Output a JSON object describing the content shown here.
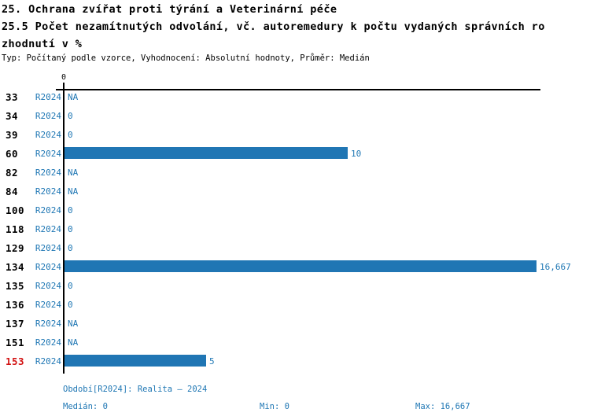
{
  "header": {
    "title_lines": [
      "25. Ochrana zvířat proti týrání a Veterinární péče",
      "25.5 Počet nezamítnutých odvolání, vč. autoremedury k počtu vydaných správních ro",
      "zhodnutí v %"
    ],
    "subtitle": "Typ: Počítaný podle vzorce, Vyhodnocení: Absolutní hodnoty, Průměr: Medián"
  },
  "colors": {
    "bar_blue": "#2076b4",
    "text_blue": "#1f77b4",
    "highlight_red": "#d21111",
    "axis_black": "#000000"
  },
  "chart_data": {
    "type": "bar",
    "orientation": "horizontal",
    "series_label": "R2024",
    "axis_top_tick_label": "0",
    "xlim": [
      0,
      16.667
    ],
    "grid": false,
    "categories": [
      "33",
      "34",
      "39",
      "60",
      "82",
      "84",
      "100",
      "118",
      "129",
      "134",
      "135",
      "136",
      "137",
      "151",
      "153"
    ],
    "values": [
      null,
      0,
      0,
      10,
      null,
      null,
      0,
      0,
      0,
      16.667,
      0,
      0,
      null,
      null,
      5
    ],
    "value_labels": [
      "NA",
      "0",
      "0",
      "10",
      "NA",
      "NA",
      "0",
      "0",
      "0",
      "16,667",
      "0",
      "0",
      "NA",
      "NA",
      "5"
    ],
    "highlighted_category": "153",
    "stats": {
      "median": 0,
      "min": 0,
      "max": 16.667
    }
  },
  "footer": {
    "period": "Období[R2024]: Realita – 2024",
    "median": "Medián: 0",
    "min": "Min: 0",
    "max": "Max: 16,667"
  }
}
